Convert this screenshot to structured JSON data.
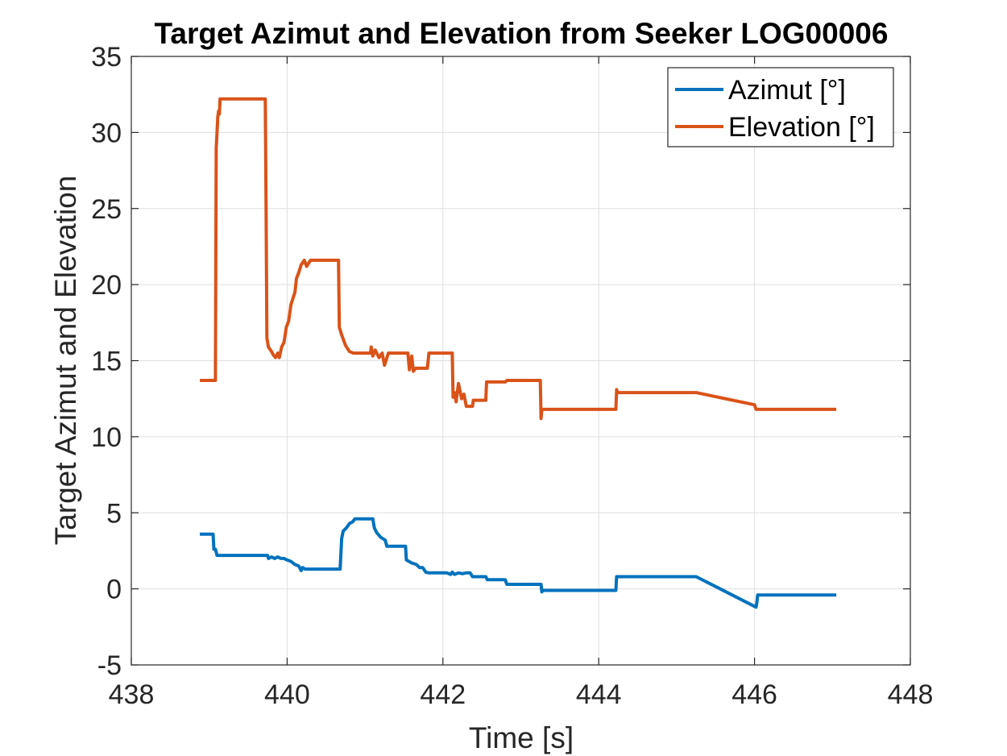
{
  "chart_data": {
    "type": "line",
    "title": "Target Azimut and Elevation from Seeker LOG00006",
    "xlabel": "Time [s]",
    "ylabel": "Target Azimut and Elevation",
    "xlim": [
      438,
      448
    ],
    "ylim": [
      -5,
      35
    ],
    "xticks": [
      438,
      440,
      442,
      444,
      446,
      448
    ],
    "yticks": [
      -5,
      0,
      5,
      10,
      15,
      20,
      25,
      30,
      35
    ],
    "grid": true,
    "legend_position": "top-right",
    "series": [
      {
        "name": "Azimut [°]",
        "color": "#0072BD",
        "points": [
          [
            438.88,
            3.6
          ],
          [
            439.05,
            3.6
          ],
          [
            439.06,
            2.6
          ],
          [
            439.08,
            2.6
          ],
          [
            439.1,
            2.2
          ],
          [
            439.75,
            2.2
          ],
          [
            439.76,
            2.0
          ],
          [
            439.8,
            2.1
          ],
          [
            439.84,
            2.0
          ],
          [
            439.88,
            2.1
          ],
          [
            439.92,
            2.0
          ],
          [
            439.96,
            2.0
          ],
          [
            440.0,
            1.9
          ],
          [
            440.05,
            1.8
          ],
          [
            440.1,
            1.6
          ],
          [
            440.15,
            1.5
          ],
          [
            440.18,
            1.2
          ],
          [
            440.2,
            1.4
          ],
          [
            440.23,
            1.3
          ],
          [
            440.26,
            1.3
          ],
          [
            440.68,
            1.3
          ],
          [
            440.7,
            3.3
          ],
          [
            440.72,
            3.8
          ],
          [
            440.76,
            4.0
          ],
          [
            440.8,
            4.3
          ],
          [
            440.84,
            4.4
          ],
          [
            440.87,
            4.6
          ],
          [
            441.1,
            4.6
          ],
          [
            441.12,
            4.0
          ],
          [
            441.15,
            3.7
          ],
          [
            441.2,
            3.4
          ],
          [
            441.26,
            3.2
          ],
          [
            441.28,
            2.8
          ],
          [
            441.52,
            2.8
          ],
          [
            441.53,
            1.9
          ],
          [
            441.6,
            1.7
          ],
          [
            441.66,
            1.6
          ],
          [
            441.7,
            1.4
          ],
          [
            441.74,
            1.4
          ],
          [
            441.78,
            1.1
          ],
          [
            441.82,
            1.05
          ],
          [
            442.05,
            1.05
          ],
          [
            442.1,
            0.95
          ],
          [
            442.12,
            1.1
          ],
          [
            442.15,
            0.95
          ],
          [
            442.2,
            1.05
          ],
          [
            442.25,
            1.0
          ],
          [
            442.3,
            1.05
          ],
          [
            442.35,
            1.05
          ],
          [
            442.38,
            0.8
          ],
          [
            442.55,
            0.8
          ],
          [
            442.57,
            0.6
          ],
          [
            442.8,
            0.6
          ],
          [
            442.82,
            0.3
          ],
          [
            443.26,
            0.3
          ],
          [
            443.27,
            -0.2
          ],
          [
            443.28,
            -0.1
          ],
          [
            444.22,
            -0.1
          ],
          [
            444.23,
            0.8
          ],
          [
            445.25,
            0.8
          ],
          [
            446.02,
            -1.2
          ],
          [
            446.03,
            -0.9
          ],
          [
            446.04,
            -0.4
          ],
          [
            447.05,
            -0.4
          ]
        ]
      },
      {
        "name": "Elevation [°]",
        "color": "#D95319",
        "points": [
          [
            438.88,
            13.7
          ],
          [
            439.08,
            13.7
          ],
          [
            439.09,
            29.0
          ],
          [
            439.1,
            30.0
          ],
          [
            439.11,
            31.0
          ],
          [
            439.12,
            31.4
          ],
          [
            439.13,
            31.2
          ],
          [
            439.14,
            32.2
          ],
          [
            439.72,
            32.2
          ],
          [
            439.73,
            25.0
          ],
          [
            439.74,
            16.5
          ],
          [
            439.76,
            15.9
          ],
          [
            439.8,
            15.6
          ],
          [
            439.82,
            15.4
          ],
          [
            439.85,
            15.2
          ],
          [
            439.88,
            15.5
          ],
          [
            439.9,
            15.2
          ],
          [
            439.93,
            15.9
          ],
          [
            439.96,
            16.2
          ],
          [
            439.99,
            17.2
          ],
          [
            440.02,
            17.6
          ],
          [
            440.05,
            18.7
          ],
          [
            440.1,
            19.5
          ],
          [
            440.12,
            20.4
          ],
          [
            440.15,
            20.8
          ],
          [
            440.18,
            21.3
          ],
          [
            440.22,
            21.6
          ],
          [
            440.25,
            21.2
          ],
          [
            440.3,
            21.6
          ],
          [
            440.66,
            21.6
          ],
          [
            440.67,
            17.2
          ],
          [
            440.7,
            16.7
          ],
          [
            440.75,
            16.0
          ],
          [
            440.8,
            15.6
          ],
          [
            440.85,
            15.5
          ],
          [
            441.07,
            15.5
          ],
          [
            441.08,
            15.9
          ],
          [
            441.1,
            15.3
          ],
          [
            441.13,
            15.7
          ],
          [
            441.18,
            15.2
          ],
          [
            441.22,
            15.5
          ],
          [
            441.25,
            14.7
          ],
          [
            441.3,
            15.5
          ],
          [
            441.55,
            15.5
          ],
          [
            441.57,
            14.4
          ],
          [
            441.6,
            15.3
          ],
          [
            441.62,
            14.3
          ],
          [
            441.65,
            14.5
          ],
          [
            441.8,
            14.5
          ],
          [
            441.82,
            15.5
          ],
          [
            442.12,
            15.5
          ],
          [
            442.13,
            12.6
          ],
          [
            442.15,
            12.9
          ],
          [
            442.17,
            12.3
          ],
          [
            442.2,
            13.5
          ],
          [
            442.24,
            12.5
          ],
          [
            442.27,
            12.8
          ],
          [
            442.3,
            12.0
          ],
          [
            442.38,
            12.0
          ],
          [
            442.39,
            12.4
          ],
          [
            442.55,
            12.4
          ],
          [
            442.56,
            13.6
          ],
          [
            442.8,
            13.6
          ],
          [
            442.82,
            13.7
          ],
          [
            443.25,
            13.7
          ],
          [
            443.26,
            11.2
          ],
          [
            443.27,
            11.8
          ],
          [
            444.22,
            11.8
          ],
          [
            444.23,
            13.1
          ],
          [
            444.24,
            12.9
          ],
          [
            445.25,
            12.9
          ],
          [
            446.0,
            12.1
          ],
          [
            446.02,
            11.8
          ],
          [
            447.05,
            11.8
          ]
        ]
      }
    ]
  }
}
